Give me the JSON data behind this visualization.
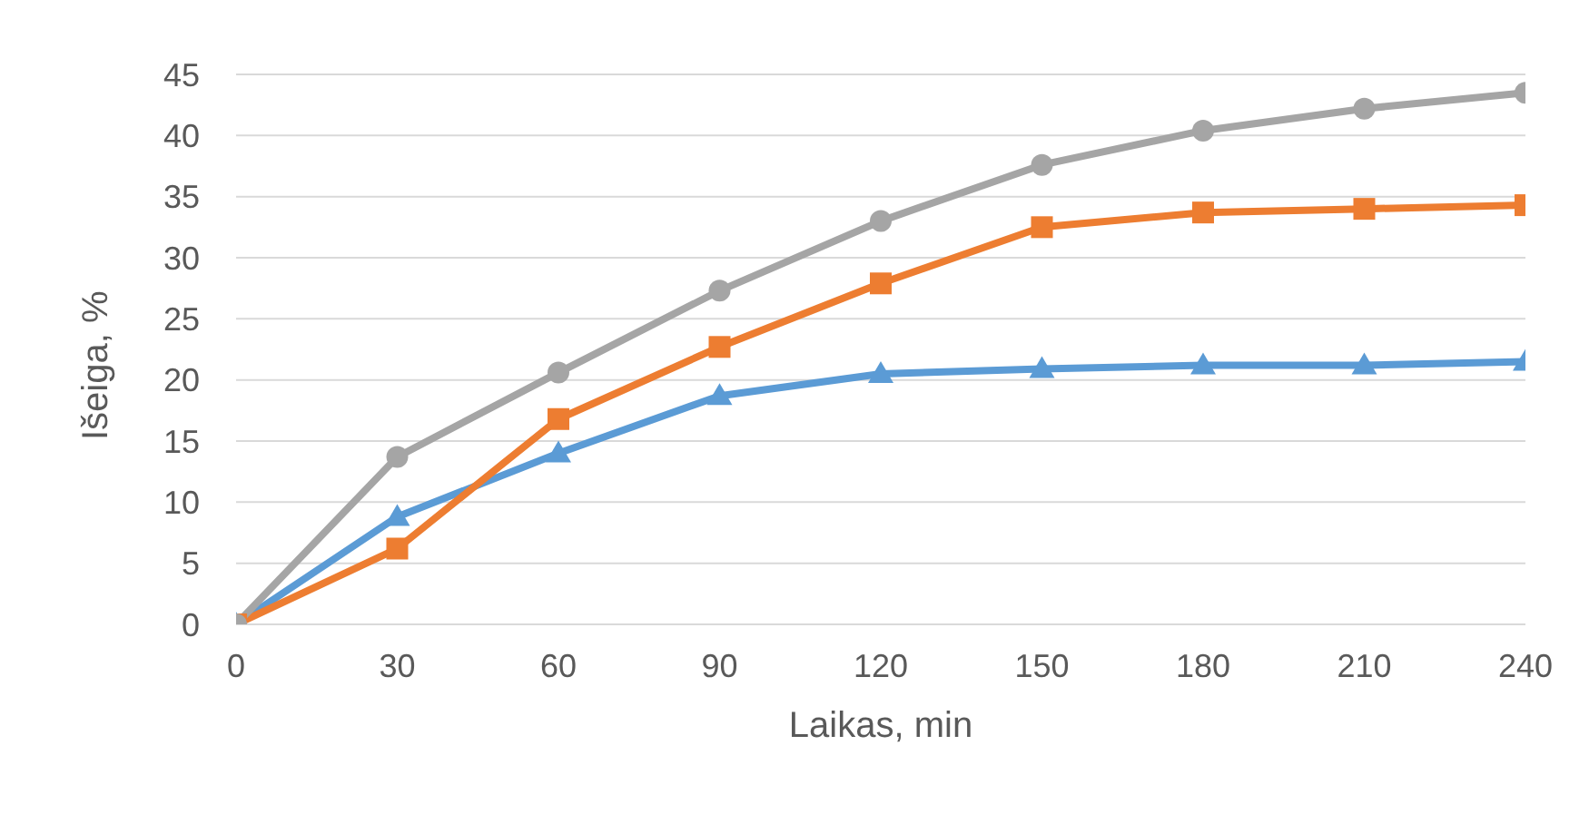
{
  "chart_data": {
    "type": "line",
    "xlabel": "Laikas, min",
    "ylabel": "Išeiga, %",
    "x": [
      0,
      30,
      60,
      90,
      120,
      150,
      180,
      210,
      240
    ],
    "xlim": [
      0,
      240
    ],
    "xticks": [
      0,
      30,
      60,
      90,
      120,
      150,
      180,
      210,
      240
    ],
    "ylim": [
      0,
      45
    ],
    "yticks": [
      0,
      5,
      10,
      15,
      20,
      25,
      30,
      35,
      40,
      45
    ],
    "grid": "y",
    "line_style": "solid",
    "series": [
      {
        "color": "#5b9bd5",
        "marker": "triangle",
        "values": [
          0,
          8.8,
          14.0,
          18.7,
          20.5,
          20.9,
          21.2,
          21.2,
          21.5
        ]
      },
      {
        "color": "#ed7d31",
        "marker": "square",
        "values": [
          0,
          6.2,
          16.8,
          22.7,
          27.9,
          32.5,
          33.7,
          34.0,
          34.3
        ]
      },
      {
        "color": "#a5a5a5",
        "marker": "circle",
        "values": [
          0,
          13.7,
          20.6,
          27.3,
          33.0,
          37.6,
          40.4,
          42.2,
          43.5
        ]
      }
    ]
  }
}
